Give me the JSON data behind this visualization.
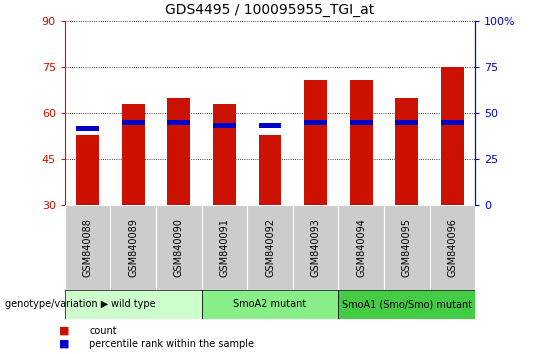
{
  "title": "GDS4495 / 100095955_TGI_at",
  "samples": [
    "GSM840088",
    "GSM840089",
    "GSM840090",
    "GSM840091",
    "GSM840092",
    "GSM840093",
    "GSM840094",
    "GSM840095",
    "GSM840096"
  ],
  "count_values": [
    53,
    63,
    65,
    63,
    53,
    71,
    71,
    65,
    75
  ],
  "percentile_values": [
    55,
    57,
    57,
    56,
    56,
    57,
    57,
    57,
    57
  ],
  "bar_bottom": 30,
  "ylim": [
    30,
    90
  ],
  "yticks": [
    30,
    45,
    60,
    75,
    90
  ],
  "groups": [
    {
      "label": "wild type",
      "start": 0,
      "end": 3,
      "color": "#ccffcc"
    },
    {
      "label": "SmoA2 mutant",
      "start": 3,
      "end": 6,
      "color": "#88ee88"
    },
    {
      "label": "SmoA1 (Smo/Smo) mutant",
      "start": 6,
      "end": 9,
      "color": "#44cc44"
    }
  ],
  "bar_color": "#cc1100",
  "percentile_color": "#0000cc",
  "left_axis_color": "#cc1100",
  "right_axis_color": "#0000cc",
  "legend_count_color": "#cc1100",
  "legend_percentile_color": "#0000cc",
  "tick_area_color": "#cccccc",
  "bar_width": 0.5,
  "figsize": [
    5.4,
    3.54
  ],
  "dpi": 100
}
